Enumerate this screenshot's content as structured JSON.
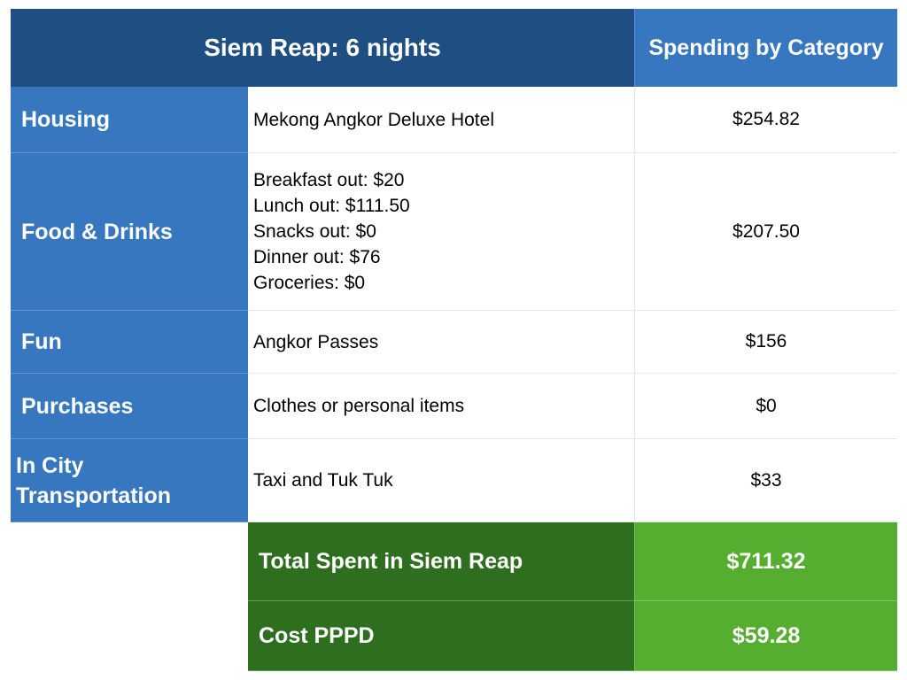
{
  "header": {
    "title": "Siem Reap: 6 nights",
    "spending_label": "Spending by Category"
  },
  "rows": [
    {
      "category": "Housing",
      "details": [
        "Mekong Angkor Deluxe Hotel"
      ],
      "amount": "$254.82"
    },
    {
      "category": "Food & Drinks",
      "details": [
        "Breakfast out: $20",
        "Lunch out: $111.50",
        "Snacks out: $0",
        "Dinner out: $76",
        "Groceries: $0"
      ],
      "amount": "$207.50"
    },
    {
      "category": "Fun",
      "details": [
        "Angkor Passes"
      ],
      "amount": "$156"
    },
    {
      "category": "Purchases",
      "details": [
        "Clothes or personal items"
      ],
      "amount": "$0"
    },
    {
      "category": "In City Transportation",
      "details": [
        "Taxi and Tuk Tuk"
      ],
      "amount": "$33"
    }
  ],
  "totals": [
    {
      "label": "Total Spent in Siem Reap",
      "amount": "$711.32"
    },
    {
      "label": "Cost PPPD",
      "amount": "$59.28"
    }
  ],
  "colors": {
    "header_dark": "#1f4f82",
    "header_light": "#3677bf",
    "total_dark": "#2e6e1f",
    "total_light": "#55ae30"
  }
}
